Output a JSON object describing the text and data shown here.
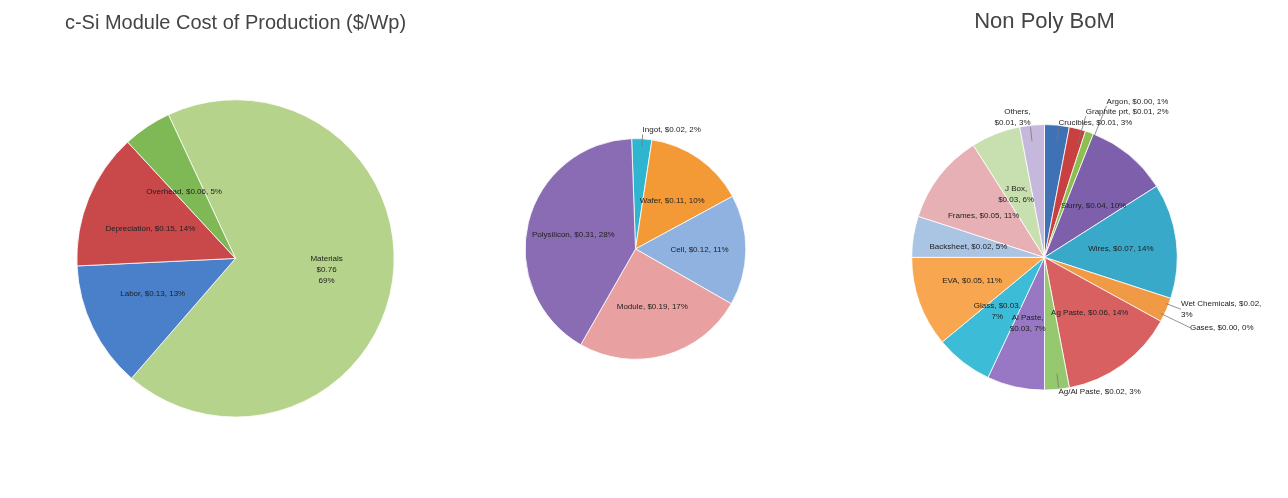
{
  "chart_data": [
    {
      "type": "pie",
      "title": "c-Si Module Cost of Production ($/Wp)",
      "categories": [
        "Materials",
        "Labor",
        "Depreciation",
        "Overhead"
      ],
      "values": [
        69,
        13,
        14,
        5
      ],
      "colors": [
        "#b5d38a",
        "#4a7fc9",
        "#c9484a",
        "#7fb955"
      ],
      "value_labels": [
        "\n$0.76\n69%",
        ", $0.13, 13%",
        ", $0.15, 14%",
        ", $0.06, 5%"
      ]
    },
    {
      "type": "pie",
      "categories": [
        "Ingot",
        "Wafer",
        "Cell",
        "Module",
        "Polysilicon"
      ],
      "values": [
        2,
        10,
        11,
        17,
        28
      ],
      "colors": [
        "#2fb5d0",
        "#f39a36",
        "#8fb2e0",
        "#e8a0a0",
        "#8a6cb5"
      ],
      "value_labels": [
        ", $0.02, 2%",
        ", $0.11, 10%",
        ", $0.12, 11%",
        ", $0.19, 17%",
        ", $0.31, 28%"
      ]
    },
    {
      "type": "pie",
      "title": "Non Poly BoM",
      "categories": [
        "Crucibles",
        "Graphite prt",
        "Argon",
        "Slurry",
        "Wires",
        "Wet Chemicals",
        "Gases",
        "Ag Paste",
        "Ag/Al Paste",
        "Al Paste",
        "Glass",
        "EVA",
        "Backsheet",
        "Frames",
        "J Box",
        "Others"
      ],
      "values": [
        3,
        2,
        1,
        10,
        14,
        3,
        0,
        14,
        3,
        7,
        7,
        11,
        5,
        11,
        6,
        3
      ],
      "colors": [
        "#3f72b5",
        "#c84040",
        "#8cbf50",
        "#7d5fab",
        "#38a9c9",
        "#f09a45",
        "#b0c4de",
        "#d96060",
        "#96c870",
        "#9878c4",
        "#3cbcd6",
        "#f8a650",
        "#aac4e4",
        "#e7b0b4",
        "#c8dfb0",
        "#c5b8dc"
      ],
      "value_labels": [
        ", $0.01, 3%",
        ", $0.01, 2%",
        ", $0.00, 1%",
        ", $0.04, 10%",
        ", $0.07, 14%",
        ", $0.02,\n3%",
        ", $0.00, 0%",
        ", $0.06, 14%",
        ", $0.02, 3%",
        ",\n$0.03, 7%",
        ", $0.03,\n7%",
        ", $0.05, 11%",
        ", $0.02, 5%",
        ", $0.05, 11%",
        ",\n$0.03, 6%",
        ",\n$0.01, 3%"
      ]
    }
  ]
}
